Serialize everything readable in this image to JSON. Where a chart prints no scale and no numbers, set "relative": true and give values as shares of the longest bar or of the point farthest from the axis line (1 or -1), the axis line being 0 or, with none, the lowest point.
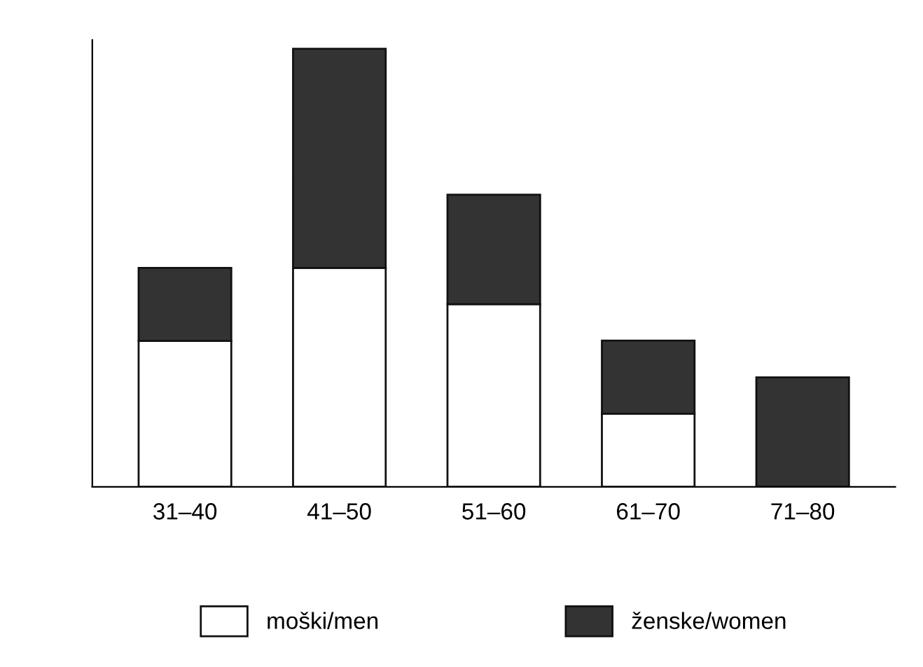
{
  "chart_data": {
    "type": "bar",
    "stacked": true,
    "relative": true,
    "categories": [
      "31–40",
      "41–50",
      "51–60",
      "61–70",
      "71–80"
    ],
    "series": [
      {
        "name": "moški/men",
        "color": "#ffffff",
        "values": [
          0.333,
          0.5,
          0.417,
          0.167,
          0
        ]
      },
      {
        "name": "ženske/women",
        "color": "#333333",
        "values": [
          0.167,
          0.5,
          0.25,
          0.167,
          0.25
        ]
      }
    ],
    "legend": "bottom",
    "grid": false
  }
}
